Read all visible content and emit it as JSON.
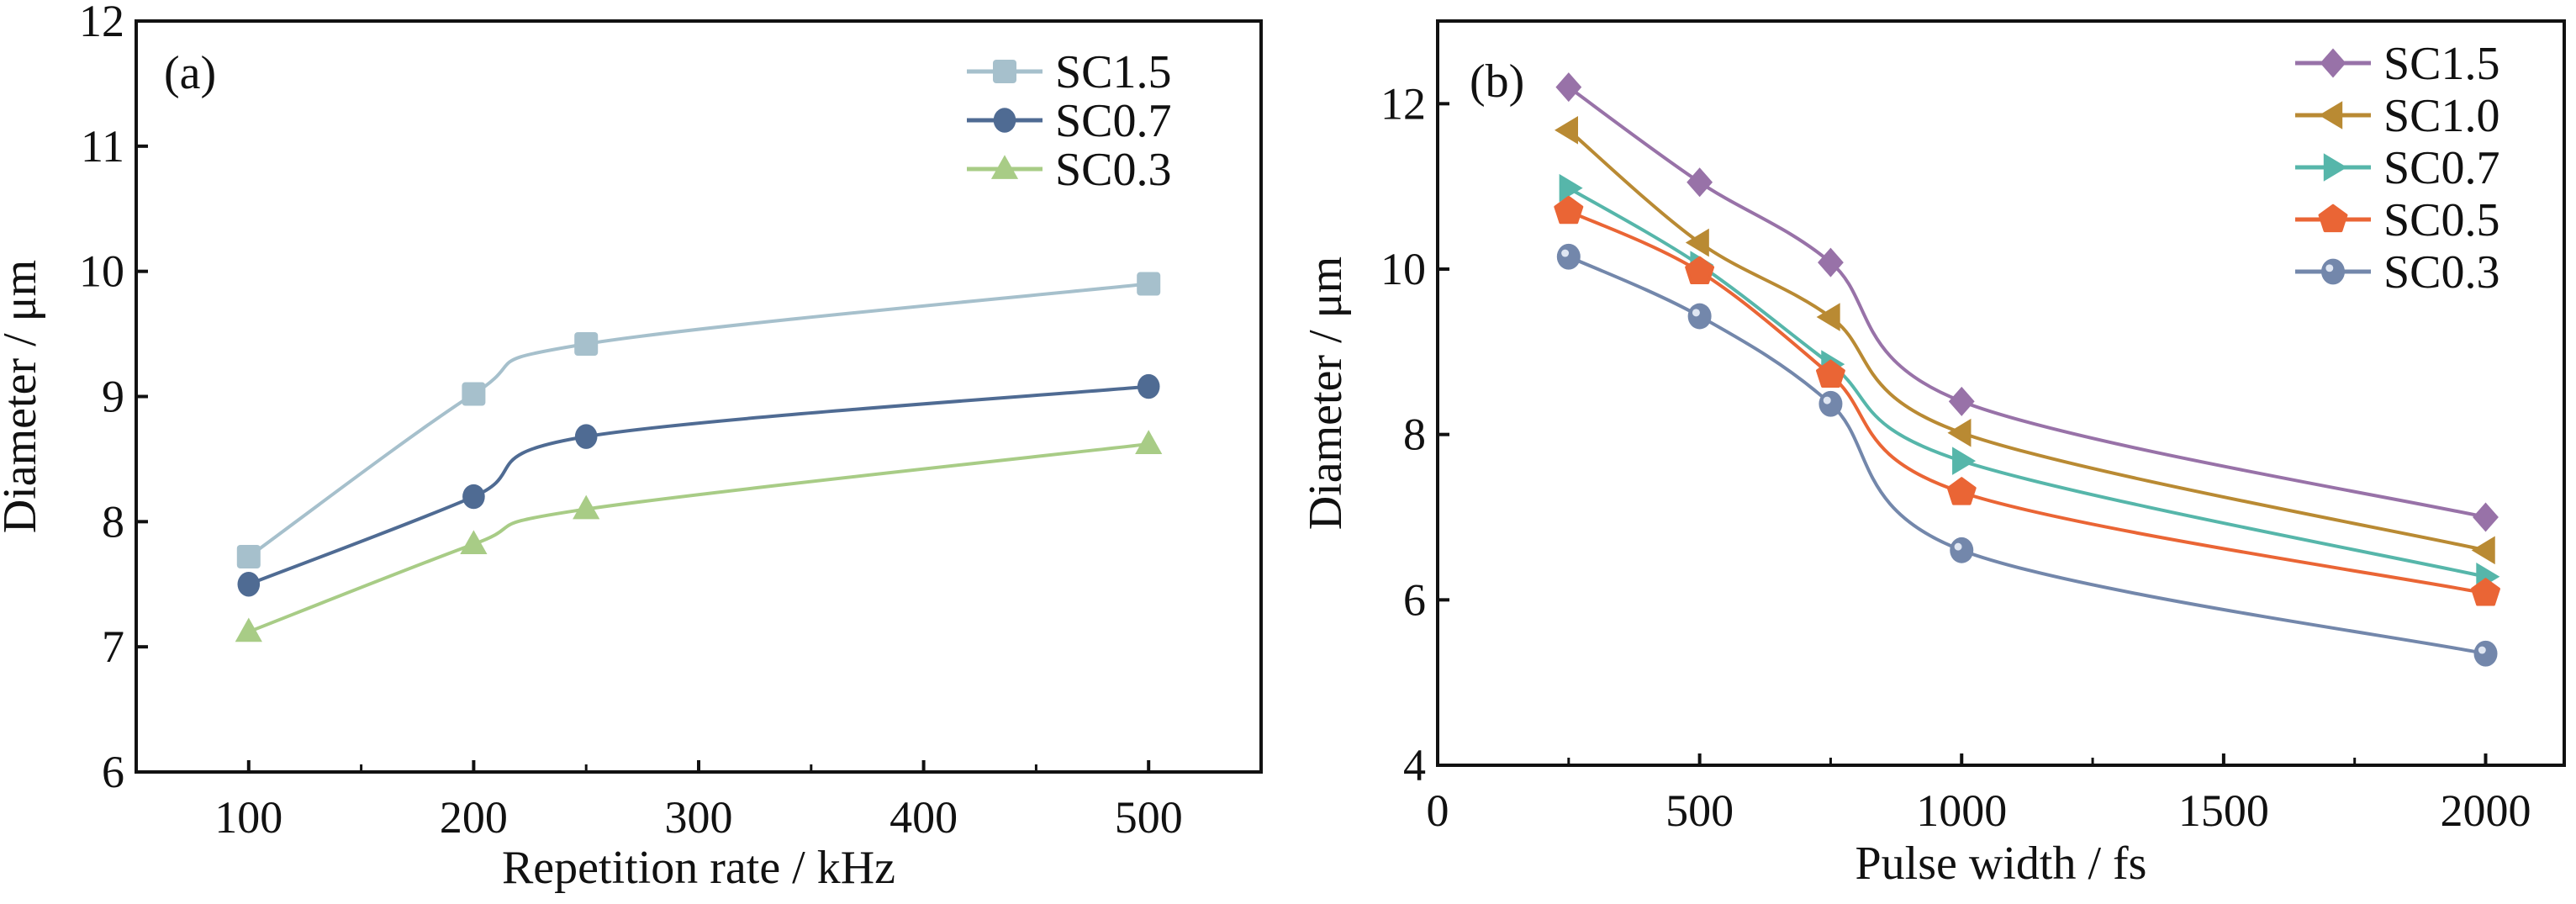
{
  "chart_data": [
    {
      "type": "line",
      "panel_label": "(a)",
      "title": "",
      "xlabel": "Repetition rate / kHz",
      "ylabel": "Diameter / μm",
      "xlim": [
        50,
        550
      ],
      "ylim": [
        6,
        12
      ],
      "xticks": [
        100,
        200,
        300,
        400,
        500
      ],
      "xtick_labels": [
        "100",
        "200",
        "300",
        "400",
        "500"
      ],
      "yticks": [
        6,
        7,
        8,
        9,
        10,
        11,
        12
      ],
      "ytick_labels": [
        "6",
        "7",
        "8",
        "9",
        "10",
        "11",
        "12"
      ],
      "grid": false,
      "legend_position": "top-right",
      "x": [
        100,
        200,
        250,
        500
      ],
      "series": [
        {
          "name": "SC1.5",
          "marker": "square",
          "color": "#a6c0cc",
          "values": [
            7.72,
            9.02,
            9.42,
            9.9
          ]
        },
        {
          "name": "SC0.7",
          "marker": "circle",
          "color": "#4f6b93",
          "values": [
            7.5,
            8.2,
            8.68,
            9.08
          ]
        },
        {
          "name": "SC0.3",
          "marker": "triangle-up",
          "color": "#a8cc86",
          "values": [
            7.12,
            7.82,
            8.1,
            8.62
          ]
        }
      ]
    },
    {
      "type": "line",
      "panel_label": "(b)",
      "title": "",
      "xlabel": "Pulse width / fs",
      "ylabel": "Diameter / μm",
      "xlim": [
        0,
        2150
      ],
      "ylim": [
        4,
        13
      ],
      "xticks": [
        0,
        500,
        1000,
        1500,
        2000
      ],
      "xtick_labels": [
        "0",
        "500",
        "1000",
        "1500",
        "2000"
      ],
      "yticks": [
        4,
        6,
        8,
        10,
        12
      ],
      "ytick_labels": [
        "4",
        "6",
        "8",
        "10",
        "12"
      ],
      "grid": false,
      "legend_position": "top-right",
      "x": [
        250,
        500,
        750,
        1000,
        2000
      ],
      "series": [
        {
          "name": "SC1.5",
          "marker": "diamond",
          "color": "#9872a8",
          "values": [
            12.2,
            11.05,
            10.08,
            8.4,
            7.0
          ]
        },
        {
          "name": "SC1.0",
          "marker": "triangle-left",
          "color": "#b98a33",
          "values": [
            11.68,
            10.32,
            9.42,
            8.02,
            6.6
          ]
        },
        {
          "name": "SC0.7",
          "marker": "triangle-right",
          "color": "#56b6aa",
          "values": [
            10.98,
            10.05,
            8.85,
            7.68,
            6.28
          ]
        },
        {
          "name": "SC0.5",
          "marker": "pentagon",
          "color": "#ea6535",
          "values": [
            10.7,
            9.97,
            8.72,
            7.3,
            6.08
          ]
        },
        {
          "name": "SC0.3",
          "marker": "sphere",
          "color": "#7387ab",
          "values": [
            10.15,
            9.43,
            8.37,
            6.6,
            5.35
          ]
        }
      ]
    }
  ]
}
